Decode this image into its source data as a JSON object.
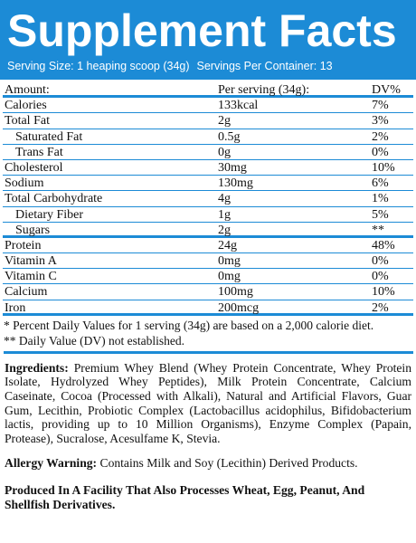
{
  "header": {
    "title": "Supplement Facts",
    "serving_size": "Serving Size: 1 heaping scoop (34g)",
    "servings_per_container": "Servings Per Container: 13"
  },
  "table": {
    "columns": [
      "Amount:",
      "Per serving (34g):",
      "DV%"
    ],
    "rows": [
      [
        "Calories",
        "133kcal",
        "7%"
      ],
      [
        "Total Fat",
        "2g",
        "3%"
      ],
      [
        "Saturated Fat",
        "0.5g",
        "2%"
      ],
      [
        "Trans Fat",
        "0g",
        "0%"
      ],
      [
        "Cholesterol",
        "30mg",
        "10%"
      ],
      [
        "Sodium",
        "130mg",
        "6%"
      ],
      [
        "Total Carbohydrate",
        "4g",
        "1%"
      ],
      [
        "Dietary Fiber",
        "1g",
        "5%"
      ],
      [
        "Sugars",
        "2g",
        "**"
      ],
      [
        "Protein",
        "24g",
        "48%"
      ],
      [
        "Vitamin A",
        "0mg",
        "0%"
      ],
      [
        "Vitamin C",
        "0mg",
        "0%"
      ],
      [
        "Calcium",
        "100mg",
        "10%"
      ],
      [
        "Iron",
        "200mcg",
        "2%"
      ]
    ]
  },
  "footnotes": [
    "* Percent Daily Values for 1 serving (34g) are based on a 2,000 calorie diet.",
    "** Daily Value (DV) not established."
  ],
  "ingredients": {
    "label": "Ingredients:",
    "text": "Premium Whey Blend (Whey Protein Concentrate, Whey Protein Isolate, Hydrolyzed Whey Peptides), Milk Protein Concentrate, Calcium Caseinate, Cocoa (Processed with Alkali), Natural and Artificial Flavors, Guar Gum, Lecithin, Probiotic Complex (Lactobacillus acidophilus, Bifidobacterium lactis, providing up to 10 Million Organisms), Enzyme Complex (Papain, Protease), Sucralose, Acesulfame K, Stevia."
  },
  "allergy": {
    "label": "Allergy Warning:",
    "text": "Contains Milk and Soy (Lecithin) Derived Products."
  },
  "facility": "Produced In A Facility That Also Processes Wheat, Egg, Peanut, And Shellfish Derivatives."
}
